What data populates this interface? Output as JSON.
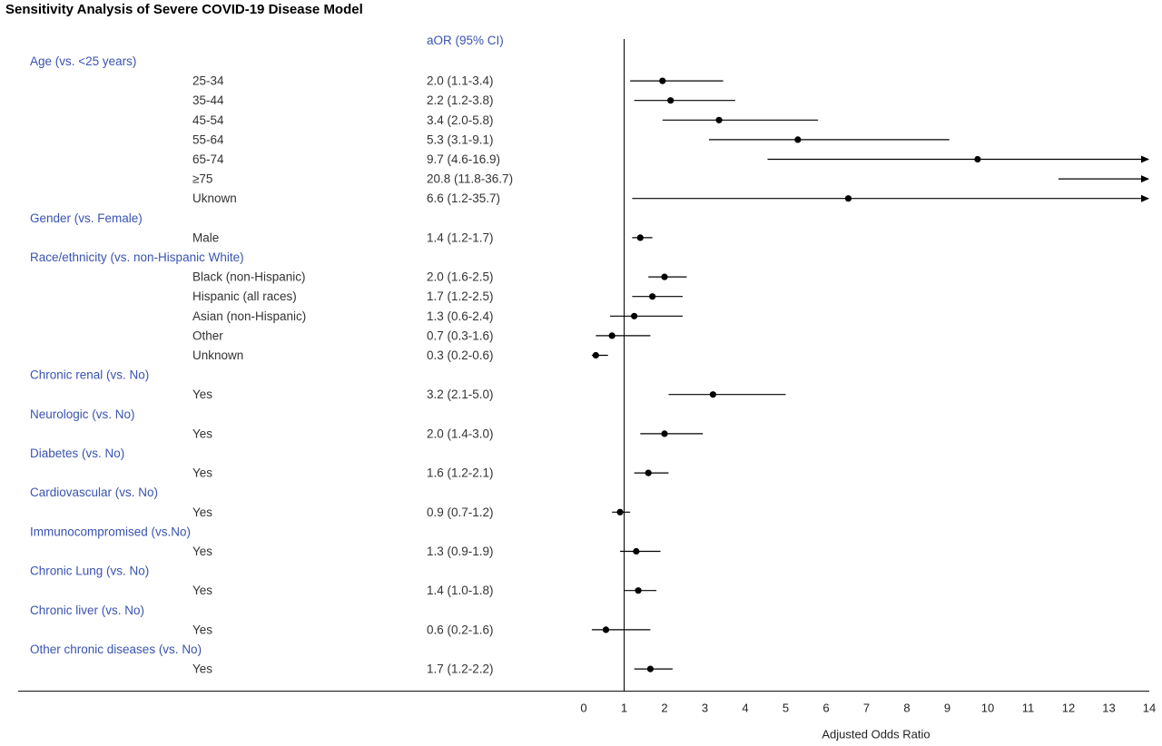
{
  "title": "Sensitivity Analysis of Severe COVID-19 Disease Model",
  "chart_data": {
    "type": "forest",
    "title": "Sensitivity Analysis of Severe COVID-19 Disease Model",
    "or_header": "aOR (95% CI)",
    "xlabel": "Adjusted Odds Ratio",
    "xlim": [
      0,
      14
    ],
    "xticks": [
      "0",
      "1",
      "2",
      "3",
      "4",
      "5",
      "6",
      "7",
      "8",
      "9",
      "10",
      "11",
      "12",
      "13",
      "14"
    ],
    "reference_line": 1,
    "colors": {
      "group_label": "#3a53b0",
      "text": "#333333",
      "marks": "#000000"
    },
    "rows": [
      {
        "kind": "group",
        "label": "Age (vs. <25 years)"
      },
      {
        "kind": "item",
        "label": "25-34",
        "text": "2.0 (1.1-3.4)",
        "or": 1.95,
        "lo": 1.15,
        "hi": 3.45
      },
      {
        "kind": "item",
        "label": "35-44",
        "text": "2.2 (1.2-3.8)",
        "or": 2.15,
        "lo": 1.25,
        "hi": 3.75
      },
      {
        "kind": "item",
        "label": "45-54",
        "text": "3.4 (2.0-5.8)",
        "or": 3.35,
        "lo": 1.95,
        "hi": 5.8
      },
      {
        "kind": "item",
        "label": "55-64",
        "text": "5.3 (3.1-9.1)",
        "or": 5.3,
        "lo": 3.1,
        "hi": 9.05
      },
      {
        "kind": "item",
        "label": "65-74",
        "text": "9.7 (4.6-16.9)",
        "or": 9.75,
        "lo": 4.55,
        "hi": 16.9
      },
      {
        "kind": "item",
        "label": "≥75",
        "text": "20.8 (11.8-36.7)",
        "or": 20.8,
        "lo": 11.75,
        "hi": 36.7
      },
      {
        "kind": "item",
        "label": "Uknown",
        "text": "6.6 (1.2-35.7)",
        "or": 6.55,
        "lo": 1.2,
        "hi": 35.7
      },
      {
        "kind": "group",
        "label": "Gender (vs. Female)"
      },
      {
        "kind": "item",
        "label": "Male",
        "text": "1.4 (1.2-1.7)",
        "or": 1.4,
        "lo": 1.2,
        "hi": 1.7
      },
      {
        "kind": "group",
        "label": "Race/ethnicity (vs. non-Hispanic White)"
      },
      {
        "kind": "item",
        "label": "Black (non-Hispanic)",
        "text": "2.0 (1.6-2.5)",
        "or": 2.0,
        "lo": 1.6,
        "hi": 2.55
      },
      {
        "kind": "item",
        "label": "Hispanic (all races)",
        "text": "1.7 (1.2-2.5)",
        "or": 1.7,
        "lo": 1.2,
        "hi": 2.45
      },
      {
        "kind": "item",
        "label": "Asian (non-Hispanic)",
        "text": "1.3 (0.6-2.4)",
        "or": 1.25,
        "lo": 0.65,
        "hi": 2.45
      },
      {
        "kind": "item",
        "label": "Other",
        "text": "0.7 (0.3-1.6)",
        "or": 0.7,
        "lo": 0.3,
        "hi": 1.65
      },
      {
        "kind": "item",
        "label": "Unknown",
        "text": "0.3 (0.2-0.6)",
        "or": 0.3,
        "lo": 0.2,
        "hi": 0.6
      },
      {
        "kind": "group",
        "label": "Chronic renal (vs. No)"
      },
      {
        "kind": "item",
        "label": "Yes",
        "text": "3.2 (2.1-5.0)",
        "or": 3.2,
        "lo": 2.1,
        "hi": 5.0
      },
      {
        "kind": "group",
        "label": "Neurologic (vs. No)"
      },
      {
        "kind": "item",
        "label": "Yes",
        "text": "2.0 (1.4-3.0)",
        "or": 2.0,
        "lo": 1.4,
        "hi": 2.95
      },
      {
        "kind": "group",
        "label": "Diabetes (vs. No)"
      },
      {
        "kind": "item",
        "label": "Yes",
        "text": "1.6 (1.2-2.1)",
        "or": 1.6,
        "lo": 1.25,
        "hi": 2.1
      },
      {
        "kind": "group",
        "label": "Cardiovascular (vs. No)"
      },
      {
        "kind": "item",
        "label": "Yes",
        "text": "0.9 (0.7-1.2)",
        "or": 0.9,
        "lo": 0.7,
        "hi": 1.15
      },
      {
        "kind": "group",
        "label": "Immunocompromised (vs.No)"
      },
      {
        "kind": "item",
        "label": "Yes",
        "text": "1.3 (0.9-1.9)",
        "or": 1.3,
        "lo": 0.9,
        "hi": 1.9
      },
      {
        "kind": "group",
        "label": "Chronic Lung (vs. No)"
      },
      {
        "kind": "item",
        "label": "Yes",
        "text": "1.4 (1.0-1.8)",
        "or": 1.35,
        "lo": 1.0,
        "hi": 1.8
      },
      {
        "kind": "group",
        "label": "Chronic liver (vs. No)"
      },
      {
        "kind": "item",
        "label": "Yes",
        "text": "0.6 (0.2-1.6)",
        "or": 0.55,
        "lo": 0.2,
        "hi": 1.65
      },
      {
        "kind": "group",
        "label": "Other chronic diseases (vs. No)"
      },
      {
        "kind": "item",
        "label": "Yes",
        "text": "1.7 (1.2-2.2)",
        "or": 1.65,
        "lo": 1.25,
        "hi": 2.2
      }
    ]
  }
}
